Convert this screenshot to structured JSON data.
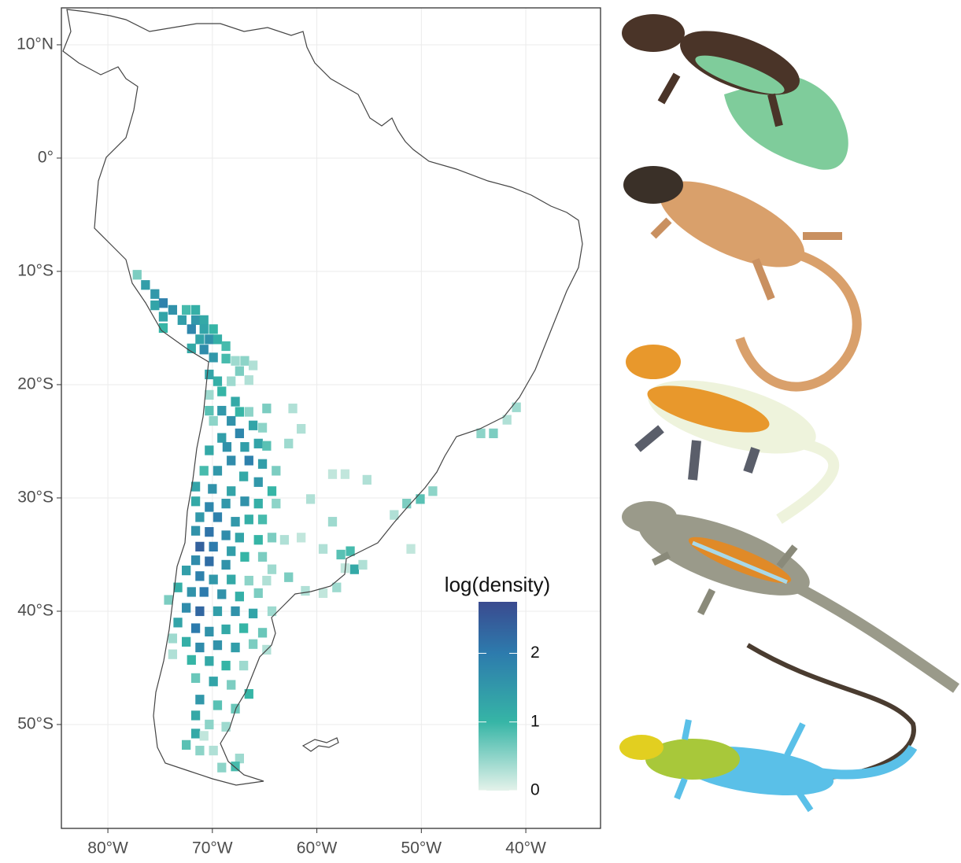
{
  "chart_data": {
    "type": "map",
    "xlim": [
      -84.45,
      -32.85
    ],
    "ylim": [
      -59.17,
      13.26
    ],
    "xticks": [
      {
        "value": -80,
        "label": "80°W"
      },
      {
        "value": -70,
        "label": "70°W"
      },
      {
        "value": -60,
        "label": "60°W"
      },
      {
        "value": -50,
        "label": "50°W"
      },
      {
        "value": -40,
        "label": "40°W"
      }
    ],
    "yticks": [
      {
        "value": 10,
        "label": "10°N"
      },
      {
        "value": 0,
        "label": "0°"
      },
      {
        "value": -10,
        "label": "10°S"
      },
      {
        "value": -20,
        "label": "20°S"
      },
      {
        "value": -30,
        "label": "30°S"
      },
      {
        "value": -40,
        "label": "40°S"
      },
      {
        "value": -50,
        "label": "50°S"
      }
    ],
    "grid": true,
    "legend_title": "log(density)",
    "clim": [
      0,
      2.75
    ],
    "cticks": [
      0,
      1,
      2
    ],
    "colorscale": [
      {
        "value": 0,
        "color": "#e4f2ea"
      },
      {
        "value": 1,
        "color": "#36b5a6"
      },
      {
        "value": 2,
        "color": "#2d7bad"
      },
      {
        "value": 2.75,
        "color": "#3a4a8f"
      }
    ],
    "x": [
      -77.2,
      -76.4,
      -75.5,
      -74.7,
      -75.5,
      -73.8,
      -74.7,
      -72.5,
      -71.6,
      -72.9,
      -71.6,
      -70.8,
      -74.7,
      -72,
      -70.8,
      -69.9,
      -71.2,
      -70.3,
      -69.5,
      -68.7,
      -72,
      -70.8,
      -69.9,
      -68.7,
      -67.8,
      -66.9,
      -66.1,
      -67.4,
      -68.2,
      -69.5,
      -70.3,
      -66.5,
      -69.1,
      -70.3,
      -67.8,
      -69.1,
      -70.3,
      -67.4,
      -66.5,
      -64.8,
      -62.3,
      -68.2,
      -69.9,
      -66.1,
      -65.2,
      -61.5,
      -69.1,
      -67.4,
      -68.6,
      -66.9,
      -65.6,
      -64.8,
      -62.7,
      -70.3,
      -68.2,
      -66.5,
      -65.2,
      -63.9,
      -70.8,
      -69.5,
      -67,
      -65.6,
      -64.3,
      -71.6,
      -70,
      -68.2,
      -66.9,
      -65.6,
      -71.6,
      -70.3,
      -68.7,
      -63.9,
      -60.6,
      -58.5,
      -57.3,
      -55.2,
      -71.2,
      -69.5,
      -67.8,
      -66.5,
      -65.2,
      -71.6,
      -70.3,
      -68.7,
      -67.4,
      -65.6,
      -64.3,
      -71.2,
      -69.9,
      -68.2,
      -66.9,
      -65.2,
      -58.5,
      -61.5,
      -63.1,
      -71.6,
      -70.3,
      -68.7,
      -64.3,
      -59.4,
      -57.7,
      -56.8,
      -57.3,
      -72.5,
      -71.2,
      -69.9,
      -68.2,
      -66.5,
      -64.8,
      -62.7,
      -61.1,
      -59.4,
      -58.1,
      -56.4,
      -55.6,
      -73.3,
      -72,
      -70.8,
      -69.1,
      -67.4,
      -65.6,
      -74.2,
      -72.5,
      -71.2,
      -69.5,
      -67.8,
      -66.1,
      -64.3,
      -73.3,
      -71.6,
      -70.3,
      -68.7,
      -67,
      -65.2,
      -73.8,
      -72.5,
      -71.2,
      -69.5,
      -67.8,
      -66.1,
      -64.8,
      -73.8,
      -72,
      -70.3,
      -68.7,
      -67,
      -71.6,
      -69.9,
      -68.2,
      -66.5,
      -71.2,
      -69.5,
      -67.8,
      -71.6,
      -70.3,
      -68.7,
      -71.6,
      -70.8,
      -72.5,
      -71.2,
      -69.9,
      -67.4,
      -69.1,
      -67.8,
      -44.3,
      -43.1,
      -41.8,
      -40.9,
      -48.9,
      -50.1,
      -51.4,
      -52.6,
      -51
    ],
    "y": [
      -10.3,
      -11.2,
      -12,
      -12.8,
      -13,
      -13.4,
      -14,
      -13.4,
      -13.4,
      -14.3,
      -14.3,
      -14.3,
      -15,
      -15.1,
      -15.1,
      -15.1,
      -16,
      -16,
      -16,
      -16.6,
      -16.8,
      -16.9,
      -17.6,
      -17.7,
      -17.9,
      -17.9,
      -18.3,
      -18.8,
      -19.7,
      -19.7,
      -19.1,
      -19.6,
      -20.6,
      -20.9,
      -21.5,
      -22.3,
      -22.3,
      -22.4,
      -22.4,
      -22.1,
      -22.1,
      -23.2,
      -23.2,
      -23.6,
      -23.8,
      -23.9,
      -24.7,
      -24.3,
      -25.5,
      -25.5,
      -25.2,
      -25.4,
      -25.2,
      -25.8,
      -26.7,
      -26.7,
      -27,
      -27.6,
      -27.6,
      -27.6,
      -28.1,
      -28.6,
      -29.4,
      -29,
      -29.2,
      -29.4,
      -30.3,
      -30.5,
      -30.3,
      -30.8,
      -30.5,
      -30.5,
      -30.1,
      -27.9,
      -27.9,
      -28.4,
      -31.7,
      -31.7,
      -32.1,
      -31.9,
      -31.9,
      -32.9,
      -33,
      -33.3,
      -33.5,
      -33.7,
      -33.5,
      -34.3,
      -34.3,
      -34.7,
      -35.2,
      -35.2,
      -32.1,
      -33.5,
      -33.7,
      -35.5,
      -35.6,
      -35.9,
      -36.3,
      -34.5,
      -35,
      -34.7,
      -36.2,
      -36.4,
      -36.9,
      -37.2,
      -37.2,
      -37.3,
      -37.3,
      -37,
      -38.2,
      -38.4,
      -37.9,
      -36.3,
      -35.9,
      -37.9,
      -38.3,
      -38.3,
      -38.5,
      -38.7,
      -38.4,
      -39,
      -39.7,
      -40,
      -40,
      -40,
      -40.2,
      -40,
      -41,
      -41.5,
      -41.8,
      -41.6,
      -41.5,
      -41.9,
      -42.4,
      -42.7,
      -43.2,
      -43,
      -43.2,
      -42.9,
      -43.4,
      -43.8,
      -44.3,
      -44.4,
      -44.8,
      -44.8,
      -45.9,
      -46.2,
      -46.5,
      -47.3,
      -47.8,
      -48.3,
      -48.6,
      -49.2,
      -50,
      -50.2,
      -50.8,
      -51,
      -51.8,
      -52.3,
      -52.3,
      -53,
      -53.8,
      -53.7,
      -24.3,
      -24.3,
      -23.1,
      -22,
      -29.4,
      -30.1,
      -30.5,
      -31.5,
      -34.5
    ],
    "values": [
      0.6,
      1.4,
      1.5,
      1.9,
      1.3,
      1.6,
      1.3,
      0.9,
      1.1,
      1.4,
      1.5,
      1.2,
      1.0,
      1.8,
      1.3,
      1.0,
      1.3,
      1.6,
      1.1,
      0.9,
      1.2,
      1.7,
      1.5,
      0.9,
      0.4,
      0.5,
      0.3,
      0.6,
      0.4,
      1.1,
      1.3,
      0.3,
      1.0,
      0.4,
      1.2,
      1.5,
      0.8,
      1.0,
      0.5,
      0.6,
      0.3,
      1.6,
      0.5,
      1.3,
      0.5,
      0.3,
      1.4,
      1.8,
      1.6,
      1.4,
      1.3,
      0.8,
      0.4,
      1.2,
      1.7,
      1.9,
      1.4,
      0.6,
      0.9,
      1.5,
      1.2,
      1.5,
      1.0,
      1.3,
      1.6,
      1.3,
      1.6,
      1.1,
      1.2,
      1.8,
      1.5,
      0.5,
      0.3,
      0.2,
      0.2,
      0.3,
      1.5,
      1.9,
      1.5,
      1.1,
      0.9,
      1.6,
      2.1,
      1.7,
      1.3,
      1.0,
      0.6,
      2.4,
      2.0,
      1.4,
      1.0,
      0.6,
      0.4,
      0.2,
      0.3,
      1.7,
      2.2,
      1.6,
      0.4,
      0.3,
      0.8,
      0.9,
      0.2,
      1.4,
      1.9,
      1.5,
      1.2,
      0.5,
      0.3,
      0.6,
      0.3,
      0.2,
      0.4,
      1.2,
      0.3,
      1.1,
      1.6,
      2.0,
      1.6,
      1.1,
      0.6,
      0.6,
      1.7,
      2.3,
      1.4,
      1.6,
      1.3,
      0.4,
      1.3,
      2.0,
      1.6,
      1.2,
      1.0,
      0.7,
      0.4,
      1.1,
      1.7,
      1.6,
      1.4,
      0.6,
      0.3,
      0.3,
      1.0,
      1.2,
      1.0,
      0.4,
      0.7,
      1.3,
      0.6,
      1.0,
      1.5,
      0.8,
      0.7,
      1.2,
      0.5,
      0.4,
      1.2,
      0.2,
      0.8,
      0.5,
      0.3,
      0.4,
      0.5,
      0.9,
      0.5,
      0.6,
      0.3,
      0.4,
      0.5,
      0.8,
      0.6,
      0.3,
      0.2
    ]
  }
}
